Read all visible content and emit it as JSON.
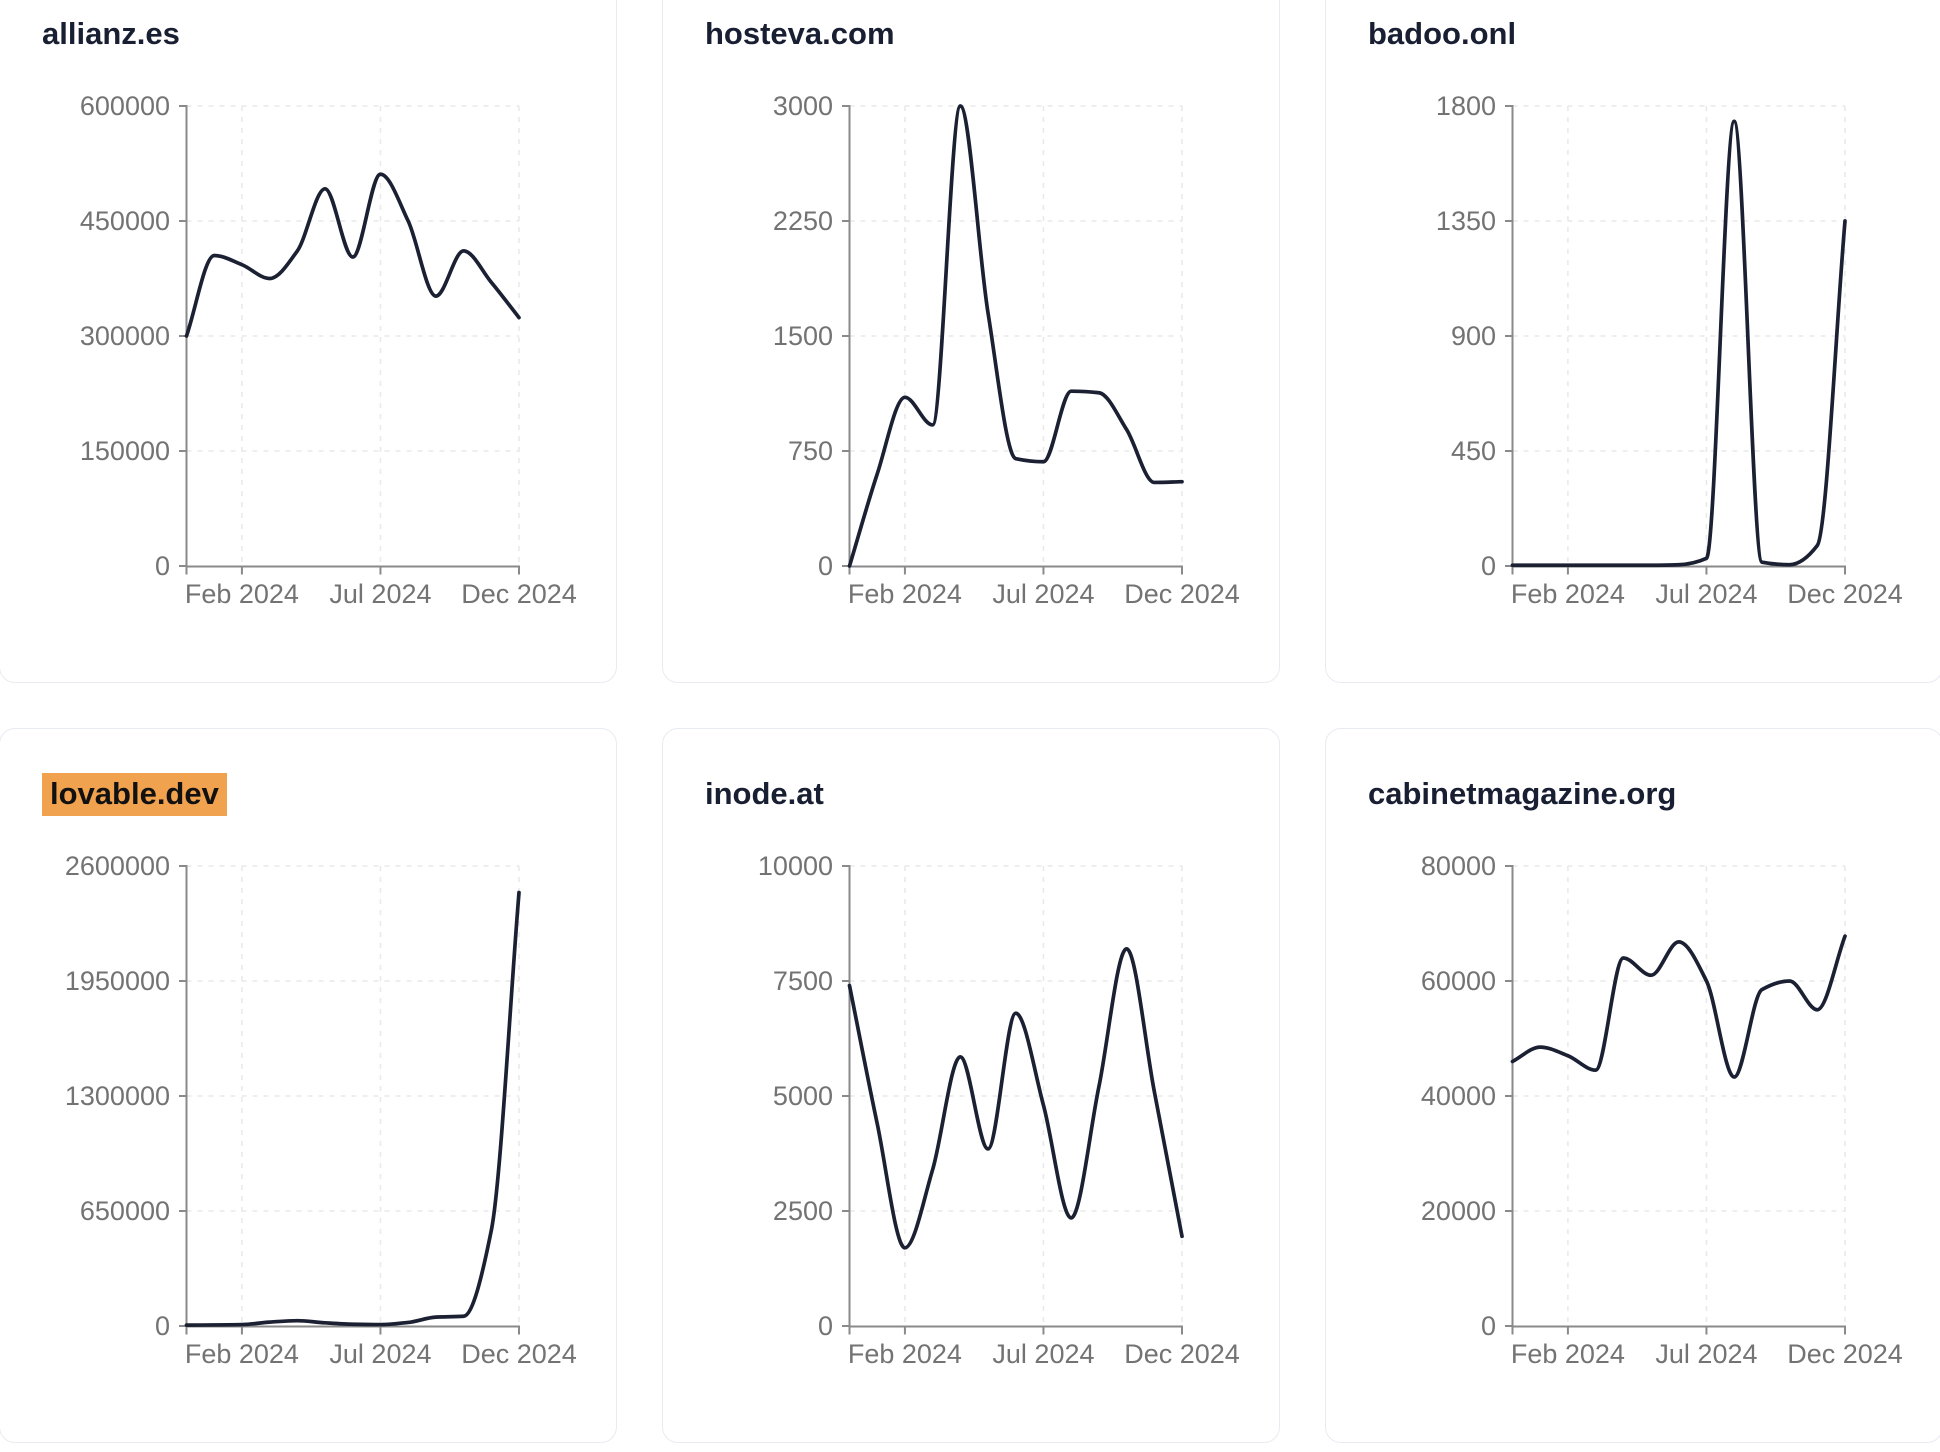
{
  "style": {
    "line_color": "#1b2133",
    "title_color": "#191f33",
    "tick_label_color": "#737373",
    "axis_color": "#8a8a8a",
    "grid_color": "#e9e9e9",
    "card_border_color": "#e8ebf1",
    "card_background": "#ffffff",
    "page_background": "#ffffff",
    "highlight_background": "#f0a24e",
    "highlight_text_color": "#111111"
  },
  "chart_data": [
    {
      "type": "line",
      "title": "allianz.es",
      "highlighted": false,
      "x": [
        "Dec 2023",
        "Jan 2024",
        "Feb 2024",
        "Mar 2024",
        "Apr 2024",
        "May 2024",
        "Jun 2024",
        "Jul 2024",
        "Aug 2024",
        "Sep 2024",
        "Oct 2024",
        "Nov 2024",
        "Dec 2024"
      ],
      "values": [
        300000,
        405000,
        393000,
        375000,
        411000,
        492000,
        403000,
        511000,
        450000,
        352000,
        411000,
        370000,
        324000
      ],
      "y_ticks": [
        0,
        150000,
        300000,
        450000,
        600000
      ],
      "ylim": [
        0,
        600000
      ],
      "x_tick_labels": [
        "Feb 2024",
        "Jul 2024",
        "Dec 2024"
      ],
      "x_tick_indices": [
        2,
        7,
        12
      ],
      "grid": "dashed",
      "legend": null
    },
    {
      "type": "line",
      "title": "hosteva.com",
      "highlighted": false,
      "x": [
        "Dec 2023",
        "Jan 2024",
        "Feb 2024",
        "Mar 2024",
        "Apr 2024",
        "May 2024",
        "Jun 2024",
        "Jul 2024",
        "Aug 2024",
        "Sep 2024",
        "Oct 2024",
        "Nov 2024",
        "Dec 2024"
      ],
      "values": [
        0,
        600,
        1100,
        920,
        3000,
        1650,
        700,
        680,
        1140,
        1130,
        890,
        545,
        550
      ],
      "y_ticks": [
        0,
        750,
        1500,
        2250,
        3000
      ],
      "ylim": [
        0,
        3000
      ],
      "x_tick_labels": [
        "Feb 2024",
        "Jul 2024",
        "Dec 2024"
      ],
      "x_tick_indices": [
        2,
        7,
        12
      ],
      "grid": "dashed",
      "legend": null
    },
    {
      "type": "line",
      "title": "badoo.onl",
      "highlighted": false,
      "x": [
        "Dec 2023",
        "Jan 2024",
        "Feb 2024",
        "Mar 2024",
        "Apr 2024",
        "May 2024",
        "Jun 2024",
        "Jul 2024",
        "Aug 2024",
        "Sep 2024",
        "Oct 2024",
        "Nov 2024",
        "Dec 2024"
      ],
      "values": [
        3,
        3,
        3,
        3,
        3,
        3,
        5,
        30,
        1740,
        15,
        5,
        80,
        1350
      ],
      "y_ticks": [
        0,
        450,
        900,
        1350,
        1800
      ],
      "ylim": [
        0,
        1800
      ],
      "x_tick_labels": [
        "Feb 2024",
        "Jul 2024",
        "Dec 2024"
      ],
      "x_tick_indices": [
        2,
        7,
        12
      ],
      "grid": "dashed",
      "legend": null
    },
    {
      "type": "line",
      "title": "lovable.dev",
      "highlighted": true,
      "x": [
        "Dec 2023",
        "Jan 2024",
        "Feb 2024",
        "Mar 2024",
        "Apr 2024",
        "May 2024",
        "Jun 2024",
        "Jul 2024",
        "Aug 2024",
        "Sep 2024",
        "Oct 2024",
        "Nov 2024",
        "Dec 2024"
      ],
      "values": [
        5000,
        6000,
        8000,
        22000,
        30000,
        18000,
        10000,
        8000,
        20000,
        50000,
        55000,
        540000,
        2450000
      ],
      "y_ticks": [
        0,
        650000,
        1300000,
        1950000,
        2600000
      ],
      "ylim": [
        0,
        2600000
      ],
      "x_tick_labels": [
        "Feb 2024",
        "Jul 2024",
        "Dec 2024"
      ],
      "x_tick_indices": [
        2,
        7,
        12
      ],
      "grid": "dashed",
      "legend": null
    },
    {
      "type": "line",
      "title": "inode.at",
      "highlighted": false,
      "x": [
        "Dec 2023",
        "Jan 2024",
        "Feb 2024",
        "Mar 2024",
        "Apr 2024",
        "May 2024",
        "Jun 2024",
        "Jul 2024",
        "Aug 2024",
        "Sep 2024",
        "Oct 2024",
        "Nov 2024",
        "Dec 2024"
      ],
      "values": [
        7400,
        4400,
        1700,
        3400,
        5850,
        3850,
        6800,
        4800,
        2350,
        5200,
        8200,
        5100,
        1950
      ],
      "y_ticks": [
        0,
        2500,
        5000,
        7500,
        10000
      ],
      "ylim": [
        0,
        10000
      ],
      "x_tick_labels": [
        "Feb 2024",
        "Jul 2024",
        "Dec 2024"
      ],
      "x_tick_indices": [
        2,
        7,
        12
      ],
      "grid": "dashed",
      "legend": null
    },
    {
      "type": "line",
      "title": "cabinetmagazine.org",
      "highlighted": false,
      "x": [
        "Dec 2023",
        "Jan 2024",
        "Feb 2024",
        "Mar 2024",
        "Apr 2024",
        "May 2024",
        "Jun 2024",
        "Jul 2024",
        "Aug 2024",
        "Sep 2024",
        "Oct 2024",
        "Nov 2024",
        "Dec 2024"
      ],
      "values": [
        46000,
        48500,
        47000,
        44500,
        64000,
        61000,
        66800,
        60000,
        43300,
        58500,
        60000,
        55000,
        67800
      ],
      "y_ticks": [
        0,
        20000,
        40000,
        60000,
        80000
      ],
      "ylim": [
        0,
        80000
      ],
      "x_tick_labels": [
        "Feb 2024",
        "Jul 2024",
        "Dec 2024"
      ],
      "x_tick_indices": [
        2,
        7,
        12
      ],
      "grid": "dashed",
      "legend": null
    }
  ]
}
